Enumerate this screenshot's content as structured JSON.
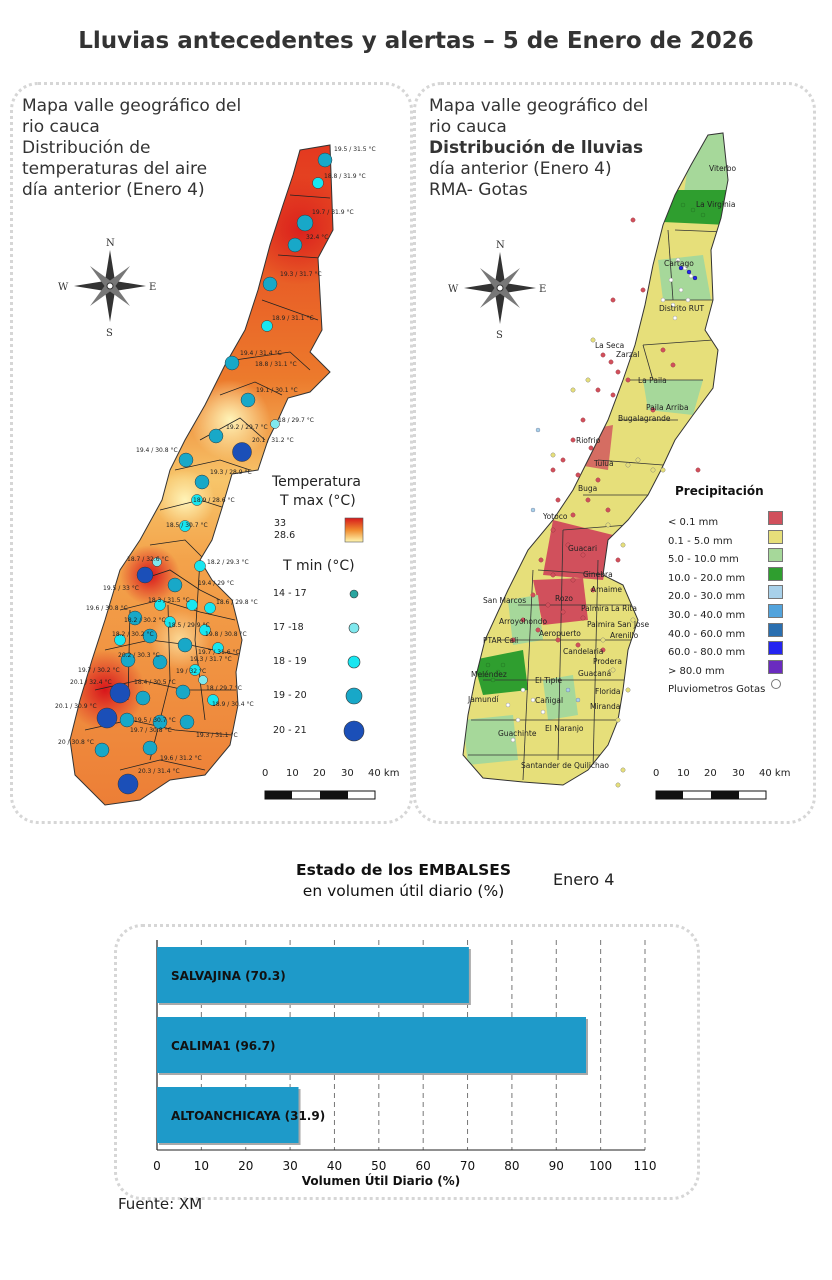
{
  "title": "Lluvias antecedentes y alertas – 5 de Enero de 2026",
  "temp_panel": {
    "lines": [
      "Mapa valle geográfico del",
      "rio cauca",
      "Distribución de",
      "temperaturas del aire",
      "día anterior (Enero 4)"
    ],
    "legend_title": "Temperatura",
    "tmax_title": "T max (°C)",
    "tmax_high": "33",
    "tmax_low": "28.6",
    "tmin_title": "T min (°C)",
    "tmin_classes": [
      "14 - 17",
      "17 -18",
      "18 - 19",
      "19 - 20",
      "20 - 21"
    ],
    "tmin_colors": [
      "#2aa6a0",
      "#7fe8ee",
      "#18e6f0",
      "#18a8c8",
      "#1b4fb8"
    ],
    "stations": [
      "19.5 / 31.5 °C",
      "18.8 / 31.9 °C",
      "19.7 / 31.9 °C",
      "32.4 °C",
      "19.3 / 31.7 °C",
      "18.9 / 31.1 °C",
      "19.4 / 31.4 °C",
      "18.8 / 31.1 °C",
      "19.1 / 30.1 °C",
      "18 / 29.7 °C",
      "19.2 / 29.7 °C",
      "20.1 / 31.2 °C",
      "19.4 / 30.8 °C",
      "19.3 / 28.9 °C",
      "18.9 / 28.6 °C",
      "18.5 / 30.7 °C",
      "18.7 / 32.6 °C",
      "18.2 / 29.3 °C",
      "19.5 / 33 °C",
      "19.4 / 29 °C",
      "19.6 / 30.8 °C",
      "18.3 / 31.5 °C",
      "18.6 / 29.8 °C",
      "18.2 / 30.2 °C",
      "18.5 / 29.9 °C",
      "19.8 / 30.8 °C",
      "18.2 / 30.2 °C",
      "20.2 / 30.3 °C",
      "19.7 / 31.6 °C",
      "19.3 / 31.7 °C",
      "19.7 / 30.2 °C",
      "20.1 / 32.4 °C",
      "18.4 / 30.5 °C",
      "19 / 32 °C",
      "18 / 29.7 °C",
      "18.9 / 30.4 °C",
      "20.1 / 30.9 °C",
      "19.5 / 30.7 °C",
      "20 / 30.8 °C",
      "19.7 / 30.8 °C",
      "19.3 / 31.1 °C",
      "19.6 / 31.2 °C",
      "20.3 / 31.4 °C"
    ],
    "scale_labels": [
      "0",
      "10",
      "20",
      "30",
      "40 km"
    ],
    "compass": {
      "n": "N",
      "s": "S",
      "e": "E",
      "w": "W"
    }
  },
  "rain_panel": {
    "lines": [
      "Mapa valle geográfico del",
      "rio cauca"
    ],
    "bold_line": "Distribución de lluvias",
    "lines2": [
      "día anterior (Enero 4)",
      "RMA- Gotas"
    ],
    "legend_title": "Precipitación",
    "classes": [
      {
        "label": "< 0.1 mm",
        "color": "#d1505c"
      },
      {
        "label": "0.1 - 5.0 mm",
        "color": "#e6df7a"
      },
      {
        "label": "5.0 - 10.0 mm",
        "color": "#a6d89a"
      },
      {
        "label": "10.0 - 20.0 mm",
        "color": "#2f9e2f"
      },
      {
        "label": "20.0 - 30.0 mm",
        "color": "#a8d1ea"
      },
      {
        "label": "30.0 - 40.0 mm",
        "color": "#52a3dc"
      },
      {
        "label": "40.0 - 60.0 mm",
        "color": "#2a6fb0"
      },
      {
        "label": "60.0 - 80.0 mm",
        "color": "#2424f0"
      },
      {
        "label": "> 80.0 mm",
        "color": "#6a2bbf"
      }
    ],
    "gauges_label": "Pluviometros Gotas",
    "towns": [
      "Viterbo",
      "La Virginia",
      "Cartago",
      "Distrito RUT",
      "La Seca",
      "Zarzal",
      "La Paila",
      "Paila Arriba",
      "Bugalagrande",
      "Riofrio",
      "Tulua",
      "Buga",
      "Yotoco",
      "Guacari",
      "Ginebra",
      "Amaime",
      "San Marcos",
      "Rozo",
      "Palmira",
      "La Rita",
      "Arroyohondo",
      "Palmira San Jose",
      "PTAR Cali",
      "Aeropuerto",
      "Arenillo",
      "Candelaria",
      "Meléndez",
      "Prodera",
      "El Tiple",
      "Guacaná",
      "Cañigal",
      "Florida",
      "Jamundí",
      "Miranda",
      "El Naranjo",
      "Guachinte",
      "Santander de Quilichao"
    ],
    "scale_labels": [
      "0",
      "10",
      "20",
      "30",
      "40 km"
    ],
    "compass": {
      "n": "N",
      "s": "S",
      "e": "E",
      "w": "W"
    }
  },
  "reservoirs": {
    "heading_bold": "Estado de los EMBALSES",
    "heading": "en volumen útil diario (%)",
    "date": "Enero 4",
    "source": "Fuente: XM"
  },
  "chart_data": {
    "type": "bar",
    "orientation": "horizontal",
    "categories": [
      "SALVAJINA",
      "CALIMA1",
      "ALTOANCHICAYA"
    ],
    "values": [
      70.3,
      96.7,
      31.9
    ],
    "bar_labels": [
      "SALVAJINA (70.3)",
      "CALIMA1 (96.7)",
      "ALTOANCHICAYA (31.9)"
    ],
    "xlabel": "Volumen Útil Diario (%)",
    "xlim": [
      0,
      110
    ],
    "xticks": [
      "0",
      "10",
      "20",
      "30",
      "40",
      "50",
      "60",
      "70",
      "80",
      "90",
      "100",
      "110"
    ],
    "bar_color": "#1e9ac9",
    "grid": "vertical dashed"
  }
}
